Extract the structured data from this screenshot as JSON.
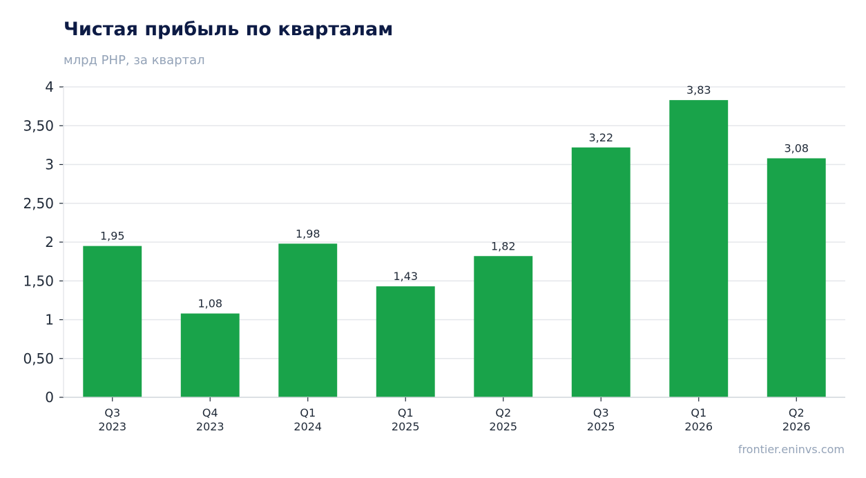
{
  "chart_data": {
    "type": "bar",
    "title": "Чистая прибыль по кварталам",
    "subtitle": "млрд РНР, за квартал",
    "categories": [
      [
        "Q3",
        "2023"
      ],
      [
        "Q4",
        "2023"
      ],
      [
        "Q1",
        "2024"
      ],
      [
        "Q1",
        "2025"
      ],
      [
        "Q2",
        "2025"
      ],
      [
        "Q3",
        "2025"
      ],
      [
        "Q1",
        "2026"
      ],
      [
        "Q2",
        "2026"
      ]
    ],
    "values": [
      1.95,
      1.08,
      1.98,
      1.43,
      1.82,
      3.22,
      3.83,
      3.08
    ],
    "value_labels": [
      "1,95",
      "1,08",
      "1,98",
      "1,43",
      "1,82",
      "3,22",
      "3,83",
      "3,08"
    ],
    "ylim": [
      0,
      4
    ],
    "yticks": [
      0,
      0.5,
      1,
      1.5,
      2,
      2.5,
      3,
      3.5,
      4
    ],
    "ytick_labels": [
      "0",
      "0,50",
      "1",
      "1,50",
      "2",
      "2,50",
      "3",
      "3,50",
      "4"
    ],
    "xlabel": "",
    "ylabel": "",
    "grid": true,
    "legend": "none",
    "bar_color": "#19a34a",
    "grid_color": "#e5e7eb"
  },
  "footer": {
    "source": "frontier.eninvs.com"
  }
}
